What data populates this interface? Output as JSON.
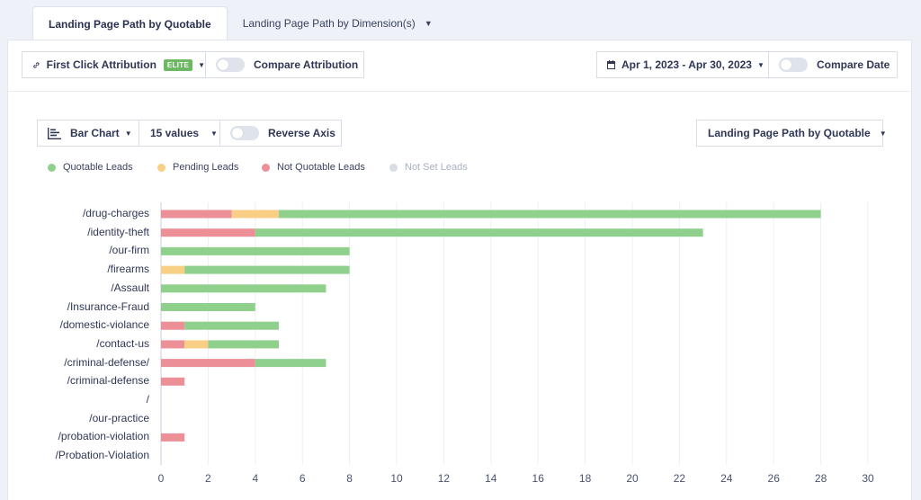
{
  "tabs": [
    {
      "label": "Landing Page Path by Quotable"
    },
    {
      "label": "Landing Page Path by Dimension(s)"
    }
  ],
  "toolbar": {
    "attribution_label": "First Click Attribution",
    "elite_badge": "ELITE",
    "compare_attribution_label": "Compare Attribution",
    "date_range": "Apr 1, 2023 - Apr 30, 2023",
    "compare_date_label": "Compare Date"
  },
  "controls": {
    "chart_type": "Bar Chart",
    "values_count": "15 values",
    "reverse_axis_label": "Reverse Axis",
    "dimension_select": "Landing Page Path by Quotable"
  },
  "colors": {
    "quotable": "#8fd18c",
    "pending": "#f8cf85",
    "not_quotable": "#ec8f96",
    "not_set": "#d9dde6"
  },
  "chart_data": {
    "type": "bar",
    "orientation": "horizontal",
    "stacked": true,
    "categories": [
      "/drug-charges",
      "/identity-theft",
      "/our-firm",
      "/firearms",
      "/Assault",
      "/Insurance-Fraud",
      "/domestic-violance",
      "/contact-us",
      "/criminal-defense/",
      "/criminal-defense",
      "/",
      "/our-practice",
      "/probation-violation",
      "/Probation-Violation"
    ],
    "series": [
      {
        "name": "Not Quotable Leads",
        "key": "not_quotable",
        "values": [
          3,
          4,
          0,
          0,
          0,
          0,
          1,
          1,
          4,
          1,
          0,
          0,
          1,
          0
        ]
      },
      {
        "name": "Pending Leads",
        "key": "pending",
        "values": [
          2,
          0,
          0,
          1,
          0,
          0,
          0,
          1,
          0,
          0,
          0,
          0,
          0,
          0
        ]
      },
      {
        "name": "Quotable Leads",
        "key": "quotable",
        "values": [
          23,
          19,
          8,
          7,
          7,
          4,
          4,
          3,
          3,
          0,
          0,
          0,
          0,
          0
        ]
      },
      {
        "name": "Not Set Leads",
        "key": "not_set",
        "values": [
          0,
          0,
          0,
          0,
          0,
          0,
          0,
          0,
          0,
          0,
          0,
          0,
          0,
          0
        ]
      }
    ],
    "legend_order": [
      "Quotable Leads",
      "Pending Leads",
      "Not Quotable Leads",
      "Not Set Leads"
    ],
    "xlim": [
      0,
      30
    ],
    "xticks": [
      0,
      2,
      4,
      6,
      8,
      10,
      12,
      14,
      16,
      18,
      20,
      22,
      24,
      26,
      28,
      30
    ],
    "grid": "vertical",
    "legend_position": "top-left"
  }
}
